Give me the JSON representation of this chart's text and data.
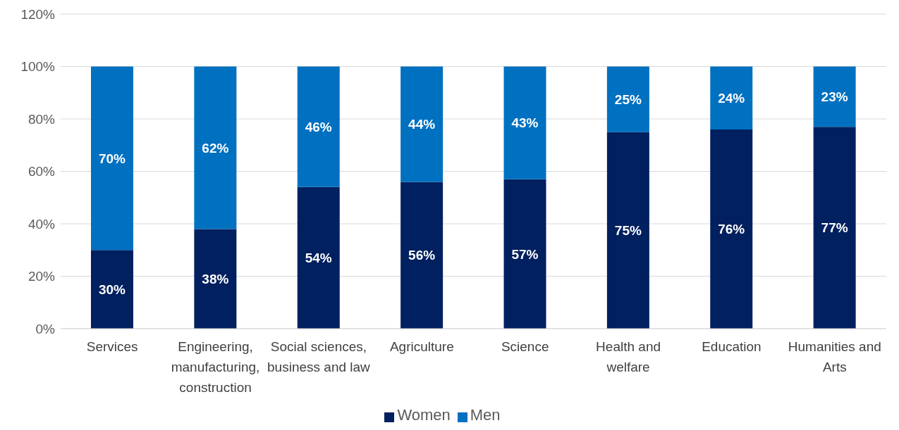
{
  "chart_data": {
    "type": "bar",
    "stacked": true,
    "categories": [
      "Services",
      "Engineering, manufacturing, construction",
      "Social sciences, business and law",
      "Agriculture",
      "Science",
      "Health and welfare",
      "Education",
      "Humanities and Arts"
    ],
    "series": [
      {
        "name": "Women",
        "color": "#002060",
        "values": [
          30,
          38,
          54,
          56,
          57,
          75,
          76,
          77
        ],
        "value_labels": [
          "30%",
          "38%",
          "54%",
          "56%",
          "57%",
          "75%",
          "76%",
          "77%"
        ]
      },
      {
        "name": "Men",
        "color": "#0070c0",
        "values": [
          70,
          62,
          46,
          44,
          43,
          25,
          24,
          23
        ],
        "value_labels": [
          "70%",
          "62%",
          "46%",
          "44%",
          "43%",
          "25%",
          "24%",
          "23%"
        ]
      }
    ],
    "ylim": [
      0,
      120
    ],
    "yticks": [
      {
        "value": 0,
        "label": "0%"
      },
      {
        "value": 20,
        "label": "20%"
      },
      {
        "value": 40,
        "label": "40%"
      },
      {
        "value": 60,
        "label": "60%"
      },
      {
        "value": 80,
        "label": "80%"
      },
      {
        "value": 100,
        "label": "100%"
      },
      {
        "value": 120,
        "label": "120%"
      }
    ],
    "grid": "y",
    "legend": "bottom"
  }
}
